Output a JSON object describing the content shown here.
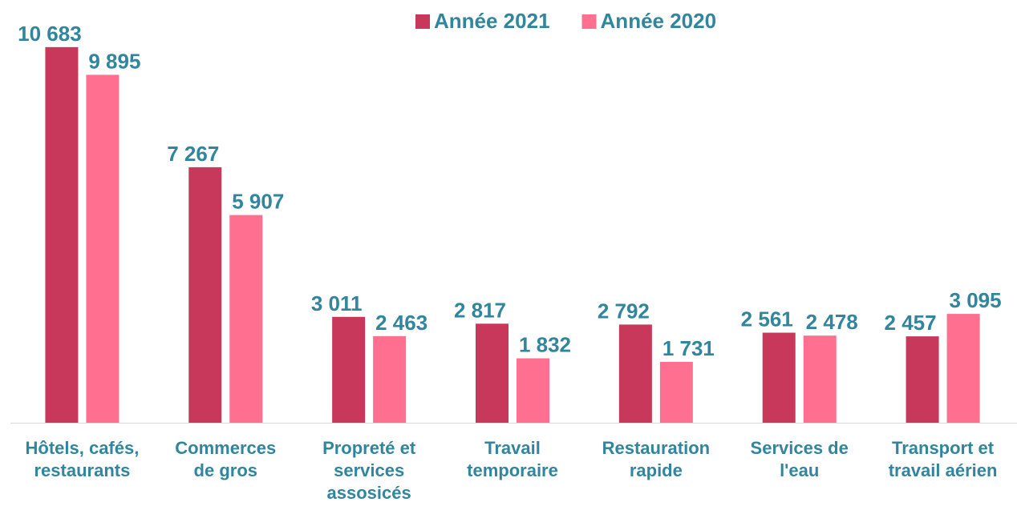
{
  "chart_data": {
    "type": "bar",
    "categories": [
      "Hôtels, cafés, restaurants",
      "Commerces de gros",
      "Propreté et services assosicés",
      "Travail temporaire",
      "Restauration rapide",
      "Services de l'eau",
      "Transport et travail aérien"
    ],
    "series": [
      {
        "name": "Année 2021",
        "color": "#c8385a",
        "values": [
          10683,
          7267,
          3011,
          2817,
          2792,
          2561,
          2457
        ],
        "value_labels": [
          "10 683",
          "7 267",
          "3 011",
          "2 817",
          "2 792",
          "2 561",
          "2 457"
        ]
      },
      {
        "name": "Année 2020",
        "color": "#ff7090",
        "values": [
          9895,
          5907,
          2463,
          1832,
          1731,
          2478,
          3095
        ],
        "value_labels": [
          "9 895",
          "5 907",
          "2 463",
          "1 832",
          "1 731",
          "2 478",
          "3 095"
        ]
      }
    ],
    "ylim": [
      0,
      12000
    ],
    "legend": "top"
  }
}
